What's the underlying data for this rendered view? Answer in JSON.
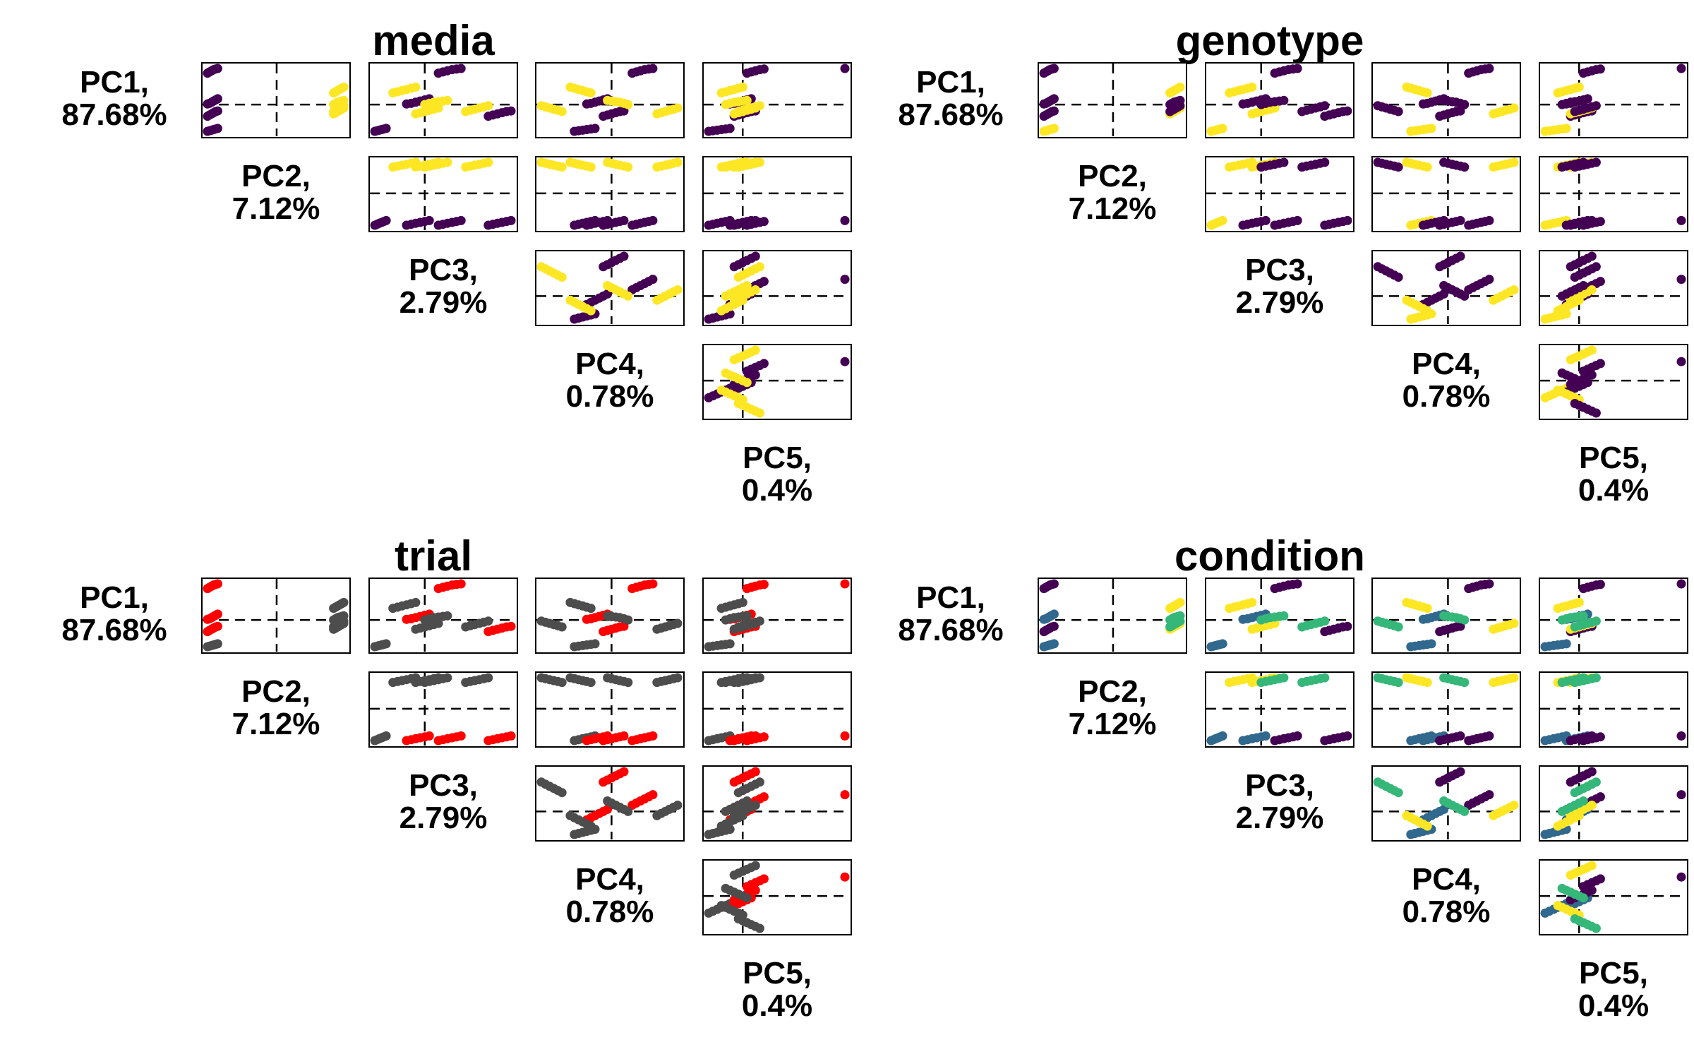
{
  "chart_data": [
    {
      "type": "scatter",
      "title": "media",
      "pcs": [
        {
          "name": "PC1,",
          "pct": "87.68%"
        },
        {
          "name": "PC2,",
          "pct": "7.12%"
        },
        {
          "name": "PC3,",
          "pct": "2.79%"
        },
        {
          "name": "PC4,",
          "pct": "0.78%"
        },
        {
          "name": "PC5,",
          "pct": "0.4%"
        }
      ],
      "groups": [
        {
          "color": "#440154",
          "indices": [
            0,
            1,
            2,
            3,
            4,
            5,
            6,
            7,
            8,
            9,
            10,
            11,
            12,
            13,
            14,
            15,
            16,
            17,
            18,
            19,
            20,
            21,
            22,
            23
          ]
        },
        {
          "color": "#FDE725",
          "indices": [
            24,
            25,
            26,
            27,
            28,
            29,
            30,
            31,
            32,
            33,
            34,
            35,
            36,
            37,
            38,
            39,
            40,
            41,
            42,
            43,
            44,
            45,
            46,
            47
          ]
        }
      ]
    },
    {
      "type": "scatter",
      "title": "genotype",
      "pcs": [
        {
          "name": "PC1,",
          "pct": "87.68%"
        },
        {
          "name": "PC2,",
          "pct": "7.12%"
        },
        {
          "name": "PC3,",
          "pct": "2.79%"
        },
        {
          "name": "PC4,",
          "pct": "0.78%"
        },
        {
          "name": "PC5,",
          "pct": "0.4%"
        }
      ],
      "groups": [
        {
          "color": "#440154",
          "indices": [
            6,
            7,
            8,
            9,
            10,
            11,
            12,
            13,
            14,
            15,
            16,
            17,
            18,
            19,
            20,
            21,
            22,
            23,
            36,
            37,
            38,
            39,
            40,
            41,
            42,
            43,
            44,
            45,
            46,
            47
          ]
        },
        {
          "color": "#FDE725",
          "indices": [
            0,
            1,
            2,
            3,
            4,
            5,
            24,
            25,
            26,
            27,
            28,
            29,
            30,
            31,
            32,
            33,
            34,
            35
          ]
        }
      ]
    },
    {
      "type": "scatter",
      "title": "trial",
      "pcs": [
        {
          "name": "PC1,",
          "pct": "87.68%"
        },
        {
          "name": "PC2,",
          "pct": "7.12%"
        },
        {
          "name": "PC3,",
          "pct": "2.79%"
        },
        {
          "name": "PC4,",
          "pct": "0.78%"
        },
        {
          "name": "PC5,",
          "pct": "0.4%"
        }
      ],
      "groups": [
        {
          "color": "#4D4D4D",
          "indices": [
            0,
            1,
            2,
            3,
            4,
            5,
            24,
            25,
            26,
            27,
            28,
            29,
            30,
            31,
            32,
            33,
            34,
            35,
            36,
            37,
            38,
            39,
            40,
            41,
            42,
            43,
            44,
            45,
            46,
            47
          ]
        },
        {
          "color": "#FF0000",
          "indices": [
            6,
            7,
            8,
            9,
            10,
            11,
            12,
            13,
            14,
            15,
            16,
            17,
            18,
            19,
            20,
            21,
            22,
            23
          ]
        }
      ]
    },
    {
      "type": "scatter",
      "title": "condition",
      "pcs": [
        {
          "name": "PC1,",
          "pct": "87.68%"
        },
        {
          "name": "PC2,",
          "pct": "7.12%"
        },
        {
          "name": "PC3,",
          "pct": "2.79%"
        },
        {
          "name": "PC4,",
          "pct": "0.78%"
        },
        {
          "name": "PC5,",
          "pct": "0.4%"
        }
      ],
      "groups": [
        {
          "color": "#440154",
          "indices": [
            6,
            7,
            8,
            9,
            10,
            11,
            12,
            13,
            14,
            15,
            16,
            17,
            18,
            19,
            20,
            21,
            22,
            23
          ]
        },
        {
          "color": "#31688E",
          "indices": [
            0,
            1,
            2,
            3,
            4,
            5,
            6,
            7,
            8,
            9,
            10,
            11
          ]
        },
        {
          "color": "#35B779",
          "indices": [
            36,
            37,
            38,
            39,
            40,
            41,
            42,
            43,
            44,
            45,
            46,
            47
          ]
        },
        {
          "color": "#FDE725",
          "indices": [
            24,
            25,
            26,
            27,
            28,
            29,
            30,
            31,
            32,
            33,
            34,
            35
          ]
        }
      ]
    }
  ],
  "samples": {
    "pc1": [
      -2.3,
      -2.25,
      -2.2,
      -2.15,
      -2.1,
      -2.05,
      0.05,
      0.1,
      0.2,
      0.3,
      0.4,
      0.5,
      2.7,
      2.8,
      2.9,
      3.0,
      3.05,
      3.1,
      -1.0,
      -0.9,
      -0.8,
      -0.7,
      -0.6,
      -0.55,
      -0.8,
      -0.7,
      -0.6,
      -0.5,
      -0.4,
      -0.3,
      1.0,
      1.1,
      1.2,
      1.3,
      1.4,
      1.5,
      -0.6,
      -0.5,
      -0.4,
      -0.3,
      -0.2,
      -0.1,
      0.0,
      0.1,
      0.2,
      0.25,
      0.3,
      0.35
    ],
    "pc2": [
      -1.7,
      -1.65,
      -1.6,
      -1.55,
      -1.5,
      -1.45,
      -1.7,
      -1.65,
      -1.6,
      -1.55,
      -1.5,
      -1.45,
      -1.7,
      -1.65,
      -1.6,
      -1.55,
      -1.5,
      -1.45,
      -1.7,
      -1.65,
      -1.6,
      -1.55,
      -1.5,
      -1.45,
      1.4,
      1.45,
      1.5,
      1.55,
      1.6,
      1.65,
      1.4,
      1.45,
      1.5,
      1.55,
      1.6,
      1.65,
      1.4,
      1.45,
      1.5,
      1.55,
      1.6,
      1.65,
      1.4,
      1.45,
      1.5,
      1.55,
      1.6,
      1.65
    ],
    "pc3": [
      -1.1,
      -1.05,
      -1.0,
      -0.95,
      -0.9,
      -0.85,
      -0.4,
      -0.3,
      -0.2,
      -0.1,
      0.0,
      0.1,
      0.3,
      0.4,
      0.5,
      0.6,
      0.7,
      0.8,
      1.4,
      1.5,
      1.6,
      1.7,
      1.8,
      1.9,
      -0.2,
      -0.1,
      0.0,
      0.1,
      0.2,
      0.3,
      -0.7,
      -0.6,
      -0.5,
      -0.4,
      -0.3,
      -0.2,
      0.9,
      1.0,
      1.1,
      1.2,
      1.3,
      1.4,
      0.0,
      0.1,
      0.2,
      0.3,
      0.4,
      0.5
    ],
    "pc4": [
      -0.9,
      -0.8,
      -0.7,
      -0.6,
      -0.5,
      -0.4,
      -0.6,
      -0.5,
      -0.4,
      -0.3,
      -0.2,
      -0.1,
      0.5,
      0.6,
      0.7,
      0.8,
      0.9,
      1.0,
      -0.2,
      -0.1,
      0.0,
      0.1,
      0.2,
      0.3,
      1.1,
      1.2,
      1.3,
      1.4,
      1.5,
      1.6,
      -0.5,
      -0.6,
      -0.7,
      -0.8,
      -0.9,
      -1.0,
      -1.2,
      -1.3,
      -1.4,
      -1.5,
      -1.6,
      -1.7,
      0.4,
      0.3,
      0.2,
      0.1,
      0.0,
      -0.1
    ],
    "pc5": [
      -0.8,
      -0.7,
      -0.6,
      -0.5,
      -0.4,
      -0.3,
      -0.3,
      -0.2,
      -0.1,
      0.0,
      0.1,
      0.2,
      0.1,
      0.2,
      0.3,
      0.4,
      0.5,
      2.4,
      -0.2,
      -0.1,
      0.0,
      0.1,
      0.2,
      0.3,
      -0.2,
      -0.1,
      0.0,
      0.1,
      0.2,
      0.3,
      -0.5,
      -0.4,
      -0.3,
      -0.2,
      -0.1,
      0.0,
      -0.1,
      0.0,
      0.1,
      0.2,
      0.3,
      0.4,
      -0.4,
      -0.3,
      -0.2,
      -0.1,
      0.0,
      0.1
    ]
  }
}
